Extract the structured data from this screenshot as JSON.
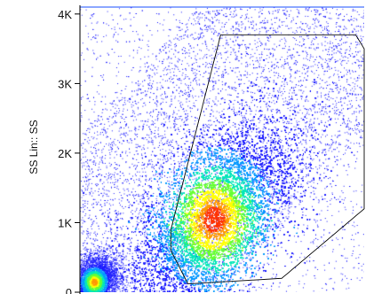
{
  "chart_data": {
    "type": "density scatter",
    "ylabel": "SS Lin:: SS",
    "xlabel": "",
    "y_ticks": [
      "0",
      "1K",
      "2K",
      "3K",
      "4K"
    ],
    "y_tick_values": [
      0,
      1000,
      2000,
      3000,
      4000
    ],
    "ylim": [
      0,
      4100
    ],
    "xlim": [
      0,
      1
    ],
    "grid": false,
    "legend": "none",
    "density_colors": [
      "#1a1aff",
      "#0099ff",
      "#00e6b8",
      "#66ff33",
      "#ffff00",
      "#ff9900",
      "#ff3300"
    ],
    "density_clusters": [
      {
        "name": "main population",
        "center_x": 0.47,
        "center_y": 1050,
        "sd_x": 0.11,
        "sd_y": 520,
        "correlation": 0.55
      },
      {
        "name": "low-left population",
        "center_x": 0.05,
        "center_y": 150,
        "sd_x": 0.04,
        "sd_y": 180,
        "correlation": 0.2
      }
    ],
    "gate_polygon": [
      {
        "x": 0.495,
        "y": 3700
      },
      {
        "x": 0.97,
        "y": 3700
      },
      {
        "x": 1.0,
        "y": 3500
      },
      {
        "x": 1.0,
        "y": 1200
      },
      {
        "x": 0.71,
        "y": 200
      },
      {
        "x": 0.38,
        "y": 120
      },
      {
        "x": 0.32,
        "y": 600
      },
      {
        "x": 0.32,
        "y": 900
      }
    ]
  },
  "colors": {
    "axis": "#000000",
    "gate": "#222222",
    "background": "#ffffff",
    "top_border": "#2255ff"
  }
}
